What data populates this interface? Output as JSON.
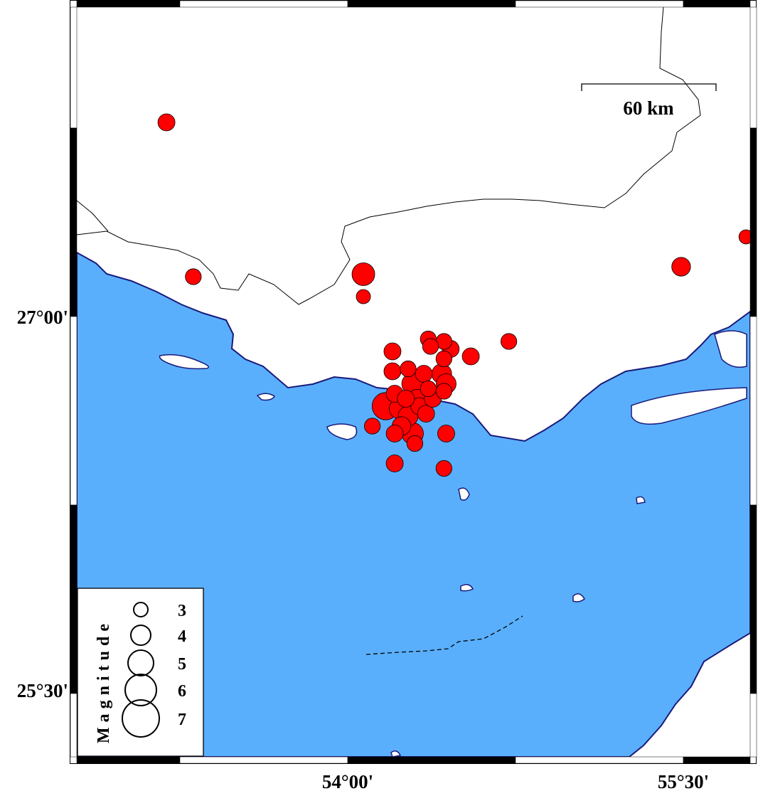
{
  "colors": {
    "sea": "#5aaffc",
    "land": "#ffffff",
    "coastline": "#1a1a7a",
    "event": "#ff0000"
  },
  "scale_bar": {
    "label": "60 km"
  },
  "axes": {
    "lat_labels": [
      "27°00'",
      "25°30'"
    ],
    "lon_labels": [
      "54°00'",
      "55°30'"
    ]
  },
  "legend": {
    "title": "Magnitude",
    "items": [
      {
        "mag": 3,
        "label": "3"
      },
      {
        "mag": 4,
        "label": "4"
      },
      {
        "mag": 5,
        "label": "5"
      },
      {
        "mag": 6,
        "label": "6"
      },
      {
        "mag": 7,
        "label": "7"
      }
    ]
  },
  "map": {
    "events": [
      {
        "lon": 53.19,
        "lat": 27.78,
        "mag": 3.5
      },
      {
        "lon": 53.31,
        "lat": 27.16,
        "mag": 3.3
      },
      {
        "lon": 54.07,
        "lat": 27.17,
        "mag": 4.5
      },
      {
        "lon": 54.07,
        "lat": 27.08,
        "mag": 3.0
      },
      {
        "lon": 55.49,
        "lat": 27.2,
        "mag": 3.8
      },
      {
        "lon": 55.78,
        "lat": 27.32,
        "mag": 3.0
      },
      {
        "lon": 54.72,
        "lat": 26.9,
        "mag": 3.3
      },
      {
        "lon": 54.55,
        "lat": 26.84,
        "mag": 3.5
      },
      {
        "lon": 54.2,
        "lat": 26.86,
        "mag": 3.5
      },
      {
        "lon": 54.2,
        "lat": 26.78,
        "mag": 3.5
      },
      {
        "lon": 54.36,
        "lat": 26.91,
        "mag": 3.3
      },
      {
        "lon": 54.43,
        "lat": 26.9,
        "mag": 3.3
      },
      {
        "lon": 54.37,
        "lat": 26.88,
        "mag": 3.3
      },
      {
        "lon": 54.46,
        "lat": 26.87,
        "mag": 3.5
      },
      {
        "lon": 54.43,
        "lat": 26.83,
        "mag": 3.3
      },
      {
        "lon": 54.27,
        "lat": 26.79,
        "mag": 3.3
      },
      {
        "lon": 54.34,
        "lat": 26.77,
        "mag": 3.5
      },
      {
        "lon": 54.42,
        "lat": 26.77,
        "mag": 4.0
      },
      {
        "lon": 54.44,
        "lat": 26.73,
        "mag": 4.0
      },
      {
        "lon": 54.21,
        "lat": 26.69,
        "mag": 3.5
      },
      {
        "lon": 54.29,
        "lat": 26.73,
        "mag": 4.3
      },
      {
        "lon": 54.36,
        "lat": 26.71,
        "mag": 3.3
      },
      {
        "lon": 54.43,
        "lat": 26.7,
        "mag": 3.3
      },
      {
        "lon": 54.17,
        "lat": 26.64,
        "mag": 5.3
      },
      {
        "lon": 54.23,
        "lat": 26.63,
        "mag": 4.0
      },
      {
        "lon": 54.32,
        "lat": 26.64,
        "mag": 3.5
      },
      {
        "lon": 54.27,
        "lat": 26.6,
        "mag": 4.0
      },
      {
        "lon": 54.35,
        "lat": 26.61,
        "mag": 3.5
      },
      {
        "lon": 54.38,
        "lat": 26.67,
        "mag": 3.5
      },
      {
        "lon": 54.31,
        "lat": 26.67,
        "mag": 3.8
      },
      {
        "lon": 54.26,
        "lat": 26.67,
        "mag": 3.5
      },
      {
        "lon": 54.24,
        "lat": 26.56,
        "mag": 3.8
      },
      {
        "lon": 54.29,
        "lat": 26.53,
        "mag": 4.3
      },
      {
        "lon": 54.3,
        "lat": 26.49,
        "mag": 3.3
      },
      {
        "lon": 54.21,
        "lat": 26.53,
        "mag": 3.5
      },
      {
        "lon": 54.11,
        "lat": 26.56,
        "mag": 3.3
      },
      {
        "lon": 54.44,
        "lat": 26.53,
        "mag": 3.5
      },
      {
        "lon": 54.21,
        "lat": 26.41,
        "mag": 3.5
      },
      {
        "lon": 54.43,
        "lat": 26.39,
        "mag": 3.3
      }
    ]
  }
}
